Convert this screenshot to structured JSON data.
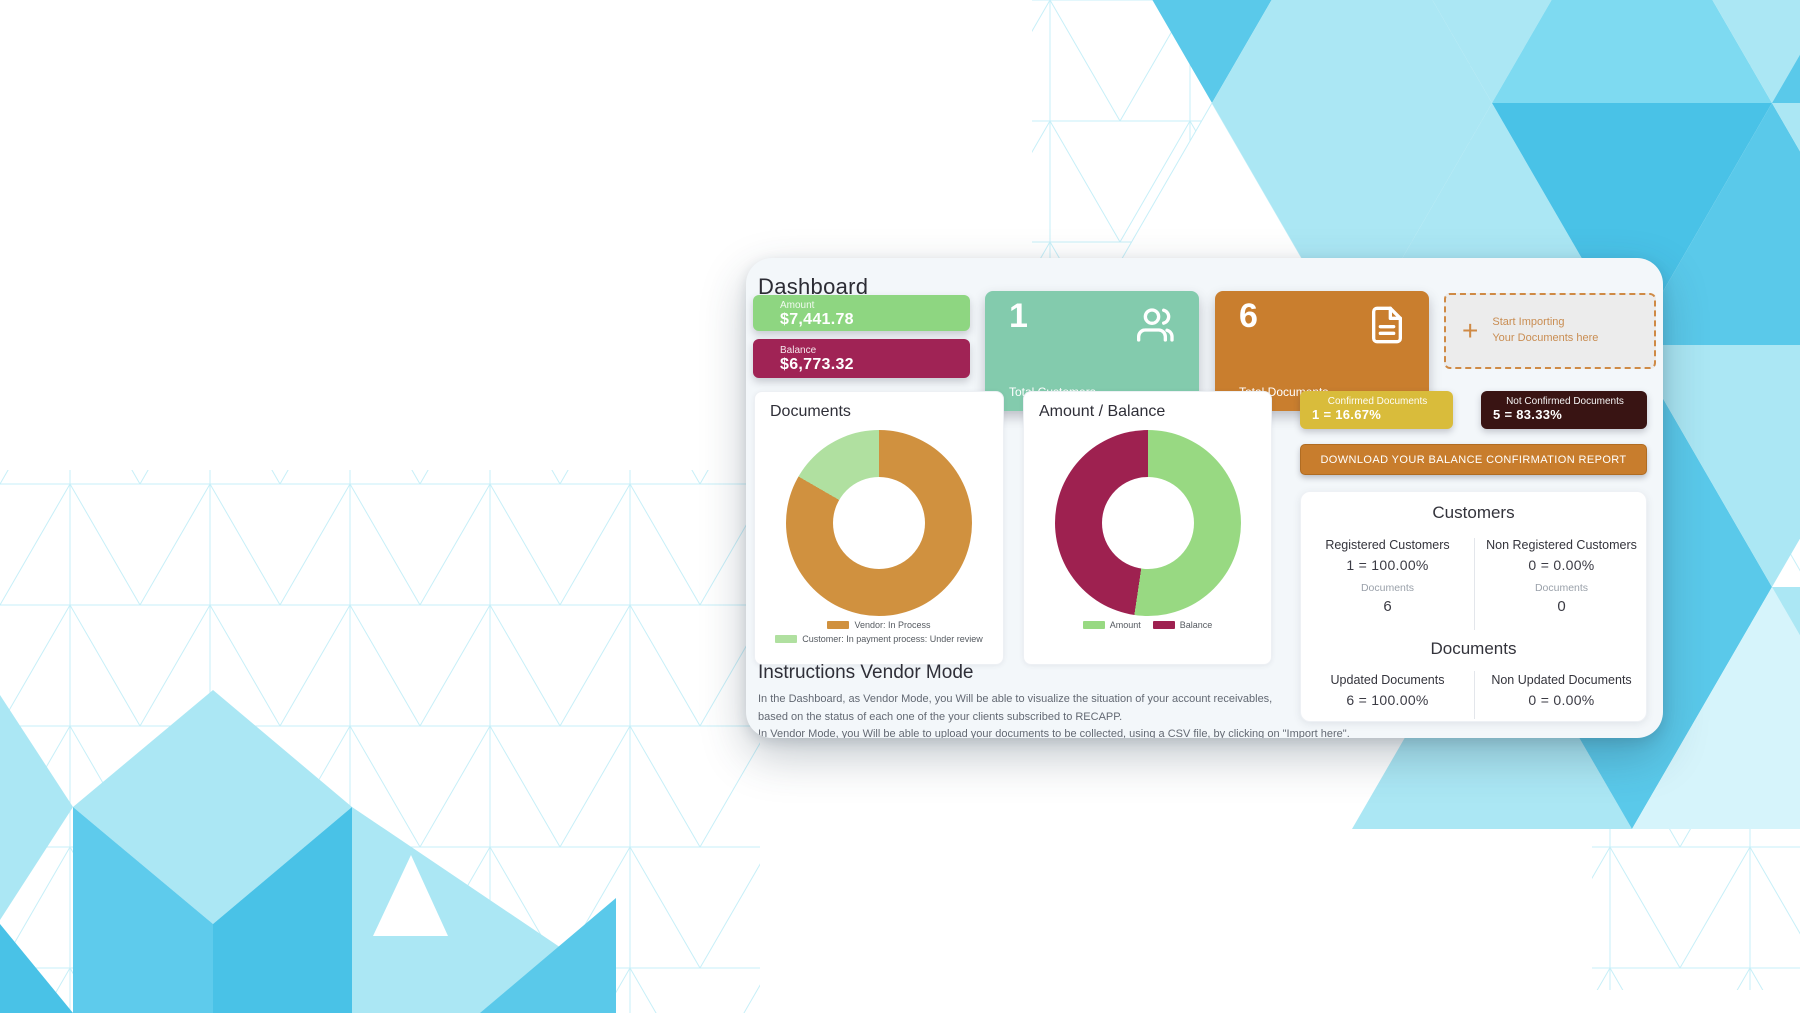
{
  "title": "Dashboard",
  "stats": {
    "amount": {
      "label": "Amount",
      "value": "$7,441.78"
    },
    "balance": {
      "label": "Balance",
      "value": "$6,773.32"
    },
    "total_customers": {
      "value": "1",
      "label": "Total Customers"
    },
    "total_documents": {
      "value": "6",
      "label": "Total Documents"
    },
    "import_box": {
      "plus": "+",
      "line1": "Start Importing",
      "line2": "Your Documents here"
    }
  },
  "badges": {
    "confirmed": {
      "label": "Confirmed Documents",
      "value": "1 = 16.67%"
    },
    "not_confirmed": {
      "label": "Not Confirmed Documents",
      "value": "5 = 83.33%"
    }
  },
  "download_button": "DOWNLOAD YOUR BALANCE CONFIRMATION REPORT",
  "summary": {
    "customers": {
      "title": "Customers",
      "left": {
        "label": "Registered Customers",
        "value": "1 = 100.00%",
        "sub_label": "Documents",
        "sub_value": "6"
      },
      "right": {
        "label": "Non Registered Customers",
        "value": "0 = 0.00%",
        "sub_label": "Documents",
        "sub_value": "0"
      }
    },
    "documents": {
      "title": "Documents",
      "left": {
        "label": "Updated Documents",
        "value": "6 = 100.00%"
      },
      "right": {
        "label": "Non Updated Documents",
        "value": "0 = 0.00%"
      }
    }
  },
  "instructions": {
    "heading": "Instructions Vendor Mode",
    "paragraph": "In the Dashboard, as Vendor Mode, you Will be able to visualize the situation of your account receivables, based on the status of each one of the your clients subscribed to RECAPP.",
    "clipped_line": "In Vendor Mode, you Will be able to upload your documents to be collected, using a CSV file, by clicking on \"Import here\"."
  },
  "chart_data": [
    {
      "type": "pie",
      "donut": true,
      "title": "Documents",
      "labels": [
        "Vendor: In Process",
        "Customer: In payment process: Under review"
      ],
      "values": [
        5,
        1
      ],
      "percent": [
        83.33,
        16.67
      ],
      "colors": [
        "#d0913f",
        "#b0e0a0"
      ],
      "legend_position": "bottom"
    },
    {
      "type": "pie",
      "donut": true,
      "title": "Amount / Balance",
      "labels": [
        "Amount",
        "Balance"
      ],
      "values": [
        7441.78,
        6773.32
      ],
      "colors": [
        "#98d982",
        "#9e2150"
      ],
      "legend_position": "bottom"
    }
  ],
  "colors": {
    "card_bg": "#f3f7fa",
    "amount_green": "#8ed681",
    "balance_maroon": "#a02355",
    "customers_teal": "#83cbad",
    "documents_orange": "#c97e2e",
    "confirmed_yellow": "#d9bc3b",
    "not_confirmed_dark": "#391413",
    "import_accent": "#cf8a45",
    "bg_cyan_dark": "#49c2e7",
    "bg_cyan_medium": "#5ac9ea",
    "bg_cyan_light": "#abe7f4",
    "bg_mesh_line": "#c7eff8"
  }
}
